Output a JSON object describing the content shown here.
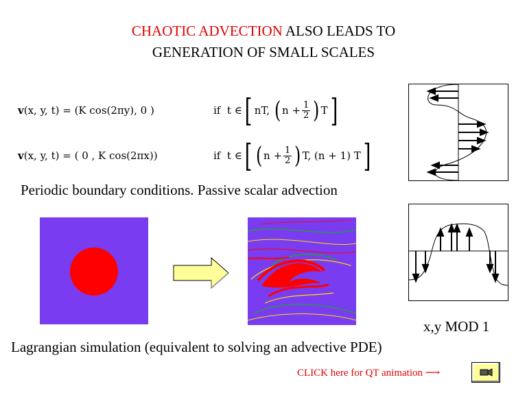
{
  "title": {
    "line1_highlight": "CHAOTIC ADVECTION",
    "line1_rest": " ALSO LEADS TO",
    "line2": "GENERATION OF SMALL SCALES"
  },
  "eq1": {
    "lhs": "v",
    "args": "(x, y, t) = (K cos(2πy),   0   )",
    "if": "if",
    "t_in": "t ∈",
    "lower": "nT,",
    "n_plus": "n +",
    "half_num": "1",
    "half_den": "2",
    "upper_T": "T"
  },
  "eq2": {
    "lhs": "v",
    "args": "(x, y, t) = (  0   , K cos(2πx))",
    "if": "if",
    "t_in": "t ∈",
    "n_plus": "n +",
    "half_num": "1",
    "half_den": "2",
    "mid": "T, (n + 1) T"
  },
  "periodic_text": "Periodic boundary conditions. Passive scalar advection",
  "mod_text": "x,y MOD 1",
  "lagrangian_text": "Lagrangian simulation (equivalent to solving an advective PDE)",
  "click_text": "CLICK here for QT animation ⟶",
  "colors": {
    "accent_red": "#e00000",
    "field_purple": "#7a3cf0",
    "blob_red": "#ff0000",
    "arrow_yellow": "#ffff99",
    "button_yellow": "#ffff99"
  },
  "icons": {
    "animation": "camera-icon",
    "proceed": "right-arrow-icon"
  }
}
